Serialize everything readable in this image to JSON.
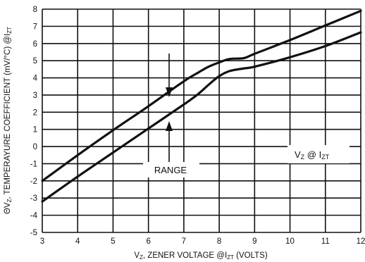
{
  "chart_data": {
    "type": "line",
    "title": "",
    "xlabel": {
      "main": "V",
      "sub1": "Z",
      "mid": ", ZENER VOLTAGE @I",
      "sub2": "ZT",
      "end": " (VOLTS)"
    },
    "ylabel": {
      "prefix": "ΘV",
      "sub1": "Z",
      "main": ", TEMPERAYURE COEFFICIENT (mV/°C) @I",
      "sub2": "ZT"
    },
    "xlim": [
      3,
      12
    ],
    "ylim": [
      -5,
      8
    ],
    "x_ticks": [
      "3",
      "4",
      "5",
      "6",
      "7",
      "8",
      "9",
      "10",
      "11",
      "12"
    ],
    "y_ticks": [
      "8",
      "7",
      "6",
      "5",
      "4",
      "3",
      "2",
      "1",
      "0",
      "-1",
      "-2",
      "-3",
      "-4",
      "-5"
    ],
    "grid": true,
    "series": [
      {
        "x": [
          3.0,
          4.0,
          5.0,
          6.0,
          7.0,
          7.4,
          7.7,
          8.0,
          8.3,
          8.7,
          9.0,
          10.0,
          11.0,
          12.0
        ],
        "y": [
          -2.0,
          -0.5,
          0.95,
          2.35,
          3.8,
          4.3,
          4.65,
          4.9,
          5.1,
          5.15,
          5.4,
          6.2,
          7.05,
          7.9
        ]
      },
      {
        "x": [
          3.0,
          4.0,
          5.0,
          6.0,
          7.0,
          7.4,
          7.7,
          8.0,
          8.3,
          8.7,
          9.0,
          10.0,
          11.0,
          12.0
        ],
        "y": [
          -3.2,
          -1.75,
          -0.35,
          1.05,
          2.45,
          3.05,
          3.6,
          4.1,
          4.4,
          4.55,
          4.65,
          5.2,
          5.85,
          6.65
        ]
      }
    ],
    "annotations": {
      "range": "RANGE",
      "vz_label": {
        "v": "V",
        "v_sub": "Z",
        "at": " @ I",
        "i_sub": "ZT"
      }
    }
  }
}
